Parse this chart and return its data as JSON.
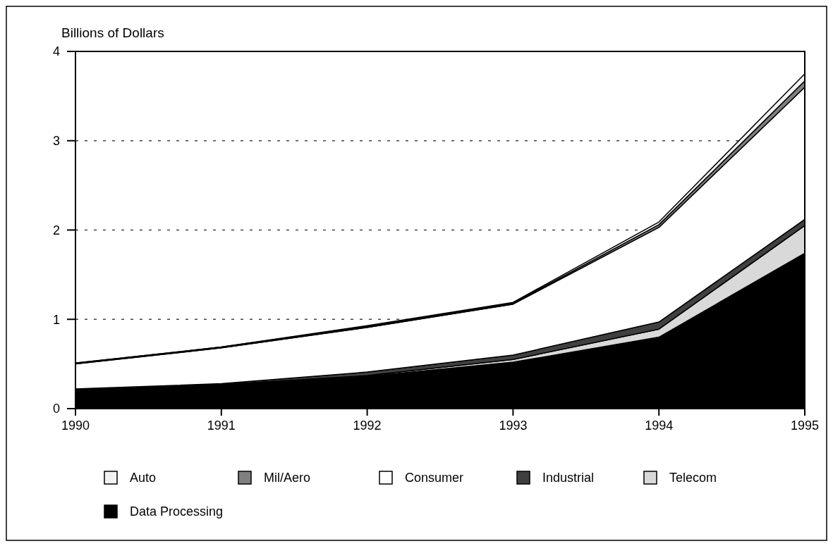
{
  "chart_data": {
    "type": "area",
    "stacked": true,
    "ylabel": "Billions of Dollars",
    "x": [
      1990,
      1991,
      1992,
      1993,
      1994,
      1995
    ],
    "xlim": [
      1990,
      1995
    ],
    "xticks": [
      1990,
      1991,
      1992,
      1993,
      1994,
      1995
    ],
    "ylim": [
      0,
      4
    ],
    "yticks": [
      0,
      1,
      2,
      3,
      4
    ],
    "grid": "y",
    "legend": "bottom",
    "series": [
      {
        "name": "Data Processing",
        "color": "#000000",
        "values": [
          0.21,
          0.27,
          0.36,
          0.52,
          0.8,
          1.74
        ]
      },
      {
        "name": "Telecom",
        "color": "#d9d9d9",
        "values": [
          0,
          0,
          0.01,
          0.03,
          0.09,
          0.31
        ]
      },
      {
        "name": "Industrial",
        "color": "#404040",
        "values": [
          0.01,
          0.01,
          0.04,
          0.05,
          0.08,
          0.07
        ]
      },
      {
        "name": "Consumer",
        "color": "#ffffff",
        "values": [
          0.28,
          0.4,
          0.5,
          0.57,
          1.06,
          1.48
        ]
      },
      {
        "name": "Mil/Aero",
        "color": "#808080",
        "values": [
          0.01,
          0.01,
          0.01,
          0.01,
          0.03,
          0.07
        ]
      },
      {
        "name": "Auto",
        "color": "#f2f2f2",
        "values": [
          0,
          0,
          0.01,
          0.01,
          0.03,
          0.08
        ]
      }
    ]
  }
}
